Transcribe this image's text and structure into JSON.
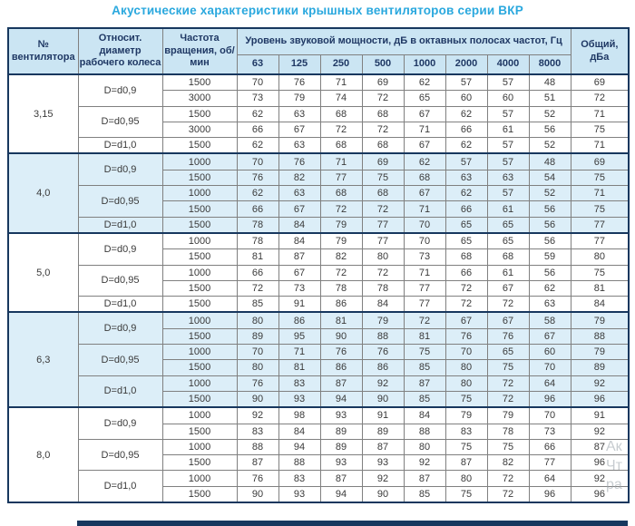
{
  "title": "Акустические характеристики крышных вентиляторов серии ВКР",
  "colors": {
    "accent": "#2AA8DE",
    "header_bg": "#CBE5F3",
    "shaded_row_bg": "#DCEEF8",
    "frame": "#17375E"
  },
  "watermark": {
    "line1": "Ак",
    "line2": "Чт",
    "line3": "ра"
  },
  "table": {
    "headers": {
      "fan_no": "№ вентилятора",
      "diameter": "Относит. диаметр рабочего колеса",
      "rpm": "Частота вращения, об/мин",
      "spl_span": "Уровень звуковой мощности, дБ в октавных полосах частот, Гц",
      "total": "Общий, дБа",
      "frequencies": [
        "63",
        "125",
        "250",
        "500",
        "1000",
        "2000",
        "4000",
        "8000"
      ]
    },
    "groups": [
      {
        "fan": "3,15",
        "shaded": false,
        "subgroups": [
          {
            "diameter": "D=d0,9",
            "rows": [
              {
                "rpm": "1500",
                "values": [
                  70,
                  76,
                  71,
                  69,
                  62,
                  57,
                  57,
                  48
                ],
                "total": 69
              },
              {
                "rpm": "3000",
                "values": [
                  73,
                  79,
                  74,
                  72,
                  65,
                  60,
                  60,
                  51
                ],
                "total": 72
              }
            ]
          },
          {
            "diameter": "D=d0,95",
            "rows": [
              {
                "rpm": "1500",
                "values": [
                  62,
                  63,
                  68,
                  68,
                  67,
                  62,
                  57,
                  52
                ],
                "total": 71
              },
              {
                "rpm": "3000",
                "values": [
                  66,
                  67,
                  72,
                  72,
                  71,
                  66,
                  61,
                  56
                ],
                "total": 75
              }
            ]
          },
          {
            "diameter": "D=d1,0",
            "rows": [
              {
                "rpm": "1500",
                "values": [
                  62,
                  63,
                  68,
                  68,
                  67,
                  62,
                  57,
                  52
                ],
                "total": 71
              }
            ]
          }
        ]
      },
      {
        "fan": "4,0",
        "shaded": true,
        "subgroups": [
          {
            "diameter": "D=d0,9",
            "rows": [
              {
                "rpm": "1000",
                "values": [
                  70,
                  76,
                  71,
                  69,
                  62,
                  57,
                  57,
                  48
                ],
                "total": 69
              },
              {
                "rpm": "1500",
                "values": [
                  76,
                  82,
                  77,
                  75,
                  68,
                  63,
                  63,
                  54
                ],
                "total": 75
              }
            ]
          },
          {
            "diameter": "D=d0,95",
            "rows": [
              {
                "rpm": "1000",
                "values": [
                  62,
                  63,
                  68,
                  68,
                  67,
                  62,
                  57,
                  52
                ],
                "total": 71
              },
              {
                "rpm": "1500",
                "values": [
                  66,
                  67,
                  72,
                  72,
                  71,
                  66,
                  61,
                  56
                ],
                "total": 75
              }
            ]
          },
          {
            "diameter": "D=d1,0",
            "rows": [
              {
                "rpm": "1500",
                "values": [
                  78,
                  84,
                  79,
                  77,
                  70,
                  65,
                  65,
                  56
                ],
                "total": 77
              }
            ]
          }
        ]
      },
      {
        "fan": "5,0",
        "shaded": false,
        "subgroups": [
          {
            "diameter": "D=d0,9",
            "rows": [
              {
                "rpm": "1000",
                "values": [
                  78,
                  84,
                  79,
                  77,
                  70,
                  65,
                  65,
                  56
                ],
                "total": 77
              },
              {
                "rpm": "1500",
                "values": [
                  81,
                  87,
                  82,
                  80,
                  73,
                  68,
                  68,
                  59
                ],
                "total": 80
              }
            ]
          },
          {
            "diameter": "D=d0,95",
            "rows": [
              {
                "rpm": "1000",
                "values": [
                  66,
                  67,
                  72,
                  72,
                  71,
                  66,
                  61,
                  56
                ],
                "total": 75
              },
              {
                "rpm": "1500",
                "values": [
                  72,
                  73,
                  78,
                  78,
                  77,
                  72,
                  67,
                  62
                ],
                "total": 81
              }
            ]
          },
          {
            "diameter": "D=d1,0",
            "rows": [
              {
                "rpm": "1500",
                "values": [
                  85,
                  91,
                  86,
                  84,
                  77,
                  72,
                  72,
                  63
                ],
                "total": 84
              }
            ]
          }
        ]
      },
      {
        "fan": "6,3",
        "shaded": true,
        "subgroups": [
          {
            "diameter": "D=d0,9",
            "rows": [
              {
                "rpm": "1000",
                "values": [
                  80,
                  86,
                  81,
                  79,
                  72,
                  67,
                  67,
                  58
                ],
                "total": 79
              },
              {
                "rpm": "1500",
                "values": [
                  89,
                  95,
                  90,
                  88,
                  81,
                  76,
                  76,
                  67
                ],
                "total": 88
              }
            ]
          },
          {
            "diameter": "D=d0,95",
            "rows": [
              {
                "rpm": "1000",
                "values": [
                  70,
                  71,
                  76,
                  76,
                  75,
                  70,
                  65,
                  60
                ],
                "total": 79
              },
              {
                "rpm": "1500",
                "values": [
                  80,
                  81,
                  86,
                  86,
                  85,
                  80,
                  75,
                  70
                ],
                "total": 89
              }
            ]
          },
          {
            "diameter": "D=d1,0",
            "rows": [
              {
                "rpm": "1000",
                "values": [
                  76,
                  83,
                  87,
                  92,
                  87,
                  80,
                  72,
                  64
                ],
                "total": 92
              },
              {
                "rpm": "1500",
                "values": [
                  90,
                  93,
                  94,
                  90,
                  85,
                  75,
                  72,
                  96
                ],
                "total": 96
              }
            ]
          }
        ]
      },
      {
        "fan": "8,0",
        "shaded": false,
        "subgroups": [
          {
            "diameter": "D=d0,9",
            "rows": [
              {
                "rpm": "1000",
                "values": [
                  92,
                  98,
                  93,
                  91,
                  84,
                  79,
                  79,
                  70
                ],
                "total": 91
              },
              {
                "rpm": "1500",
                "values": [
                  83,
                  84,
                  89,
                  89,
                  88,
                  83,
                  78,
                  73
                ],
                "total": 92
              }
            ]
          },
          {
            "diameter": "D=d0,95",
            "rows": [
              {
                "rpm": "1000",
                "values": [
                  88,
                  94,
                  89,
                  87,
                  80,
                  75,
                  75,
                  66
                ],
                "total": 87
              },
              {
                "rpm": "1500",
                "values": [
                  87,
                  88,
                  93,
                  93,
                  92,
                  87,
                  82,
                  77
                ],
                "total": 96
              }
            ]
          },
          {
            "diameter": "D=d1,0",
            "rows": [
              {
                "rpm": "1000",
                "values": [
                  76,
                  83,
                  87,
                  92,
                  87,
                  80,
                  72,
                  64
                ],
                "total": 92
              },
              {
                "rpm": "1500",
                "values": [
                  90,
                  93,
                  94,
                  90,
                  85,
                  75,
                  72,
                  96
                ],
                "total": 96
              }
            ]
          }
        ]
      }
    ]
  }
}
